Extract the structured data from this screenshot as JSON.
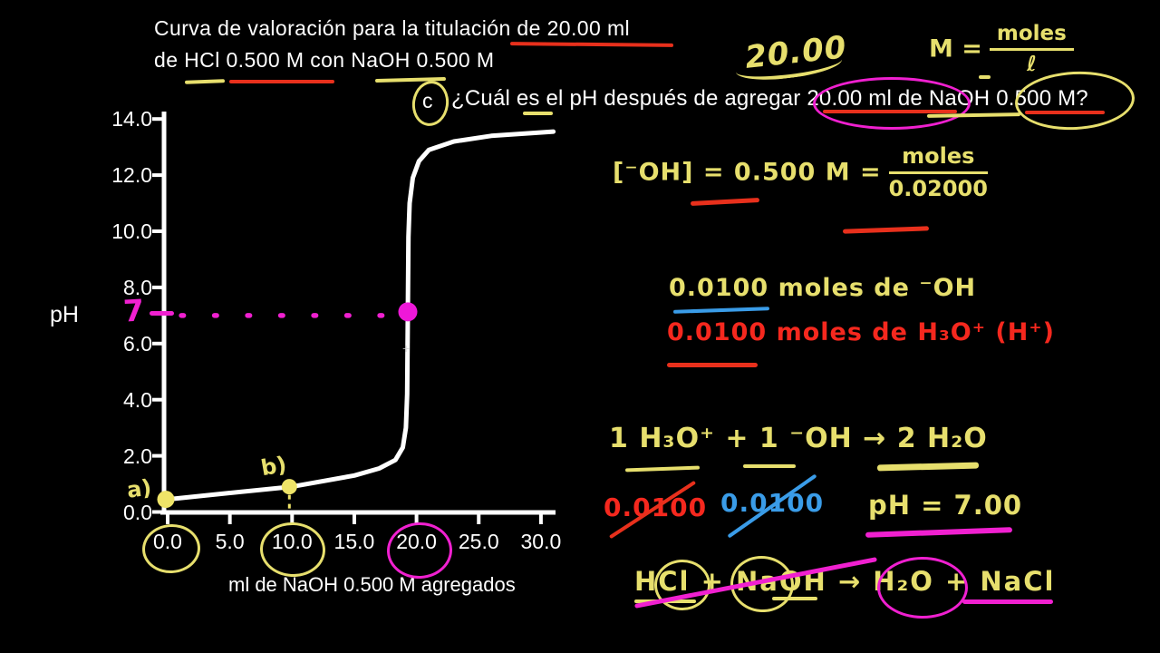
{
  "title": {
    "line1": "Curva de valoración para la titulación de 20.00 ml",
    "line2": "de HCl 0.500 M con NaOH 0.500 M"
  },
  "question": {
    "circle_label": "c",
    "text": "¿Cuál es el pH después de agregar 20.00 ml de NaOH 0.500 M?"
  },
  "plot": {
    "ylabel": "pH",
    "xlabel": "ml de NaOH 0.500 M agregados",
    "point_a_label": "a)",
    "point_b_label": "b)",
    "ph7_label": "7",
    "cursor_glyph": "+"
  },
  "chart_data": {
    "type": "line",
    "title": "Curva de valoración para la titulación de 20.00 ml de HCl 0.500 M con NaOH 0.500 M",
    "xlabel": "ml de NaOH 0.500 M agregados",
    "ylabel": "pH",
    "xlim": [
      0,
      31
    ],
    "ylim": [
      0,
      14
    ],
    "grid": false,
    "legend": false,
    "x_ticks": [
      0.0,
      5.0,
      10.0,
      15.0,
      20.0,
      25.0,
      30.0
    ],
    "y_ticks": [
      0.0,
      2.0,
      4.0,
      6.0,
      8.0,
      10.0,
      12.0,
      14.0
    ],
    "x_tick_labels": [
      "0.0",
      "5.0",
      "10.0",
      "15.0",
      "20.0",
      "25.0",
      "30.0"
    ],
    "y_tick_labels": [
      "0.0",
      "2.0",
      "4.0",
      "6.0",
      "8.0",
      "10.0",
      "12.0",
      "14.0"
    ],
    "curve": [
      [
        0,
        0.45
      ],
      [
        5,
        0.68
      ],
      [
        10,
        0.9
      ],
      [
        15,
        1.3
      ],
      [
        17,
        1.55
      ],
      [
        18.3,
        1.85
      ],
      [
        18.9,
        2.3
      ],
      [
        19.15,
        3.0
      ],
      [
        19.25,
        4.2
      ],
      [
        19.3,
        7.0
      ],
      [
        19.35,
        9.8
      ],
      [
        19.45,
        11.0
      ],
      [
        19.7,
        11.9
      ],
      [
        20.2,
        12.5
      ],
      [
        21,
        12.9
      ],
      [
        23,
        13.2
      ],
      [
        26,
        13.4
      ],
      [
        31,
        13.55
      ]
    ],
    "marked_points": [
      {
        "label": "a)",
        "ml": 0,
        "ph": 0.45,
        "color": "#efe468"
      },
      {
        "label": "b)",
        "ml": 10,
        "ph": 0.9,
        "color": "#efe468"
      },
      {
        "label": "",
        "ml": 19.3,
        "ph": 7.0,
        "color": "#ee18d8"
      }
    ],
    "reference_line": {
      "ph": 7.0,
      "from_ml": 1.1,
      "to_ml": 18.0,
      "style": "dotted",
      "color": "#f020d0"
    }
  },
  "annotations": {
    "volume_scribble": "20.00",
    "molarity_def": {
      "lhs": "M =",
      "numerator": "moles",
      "denominator": "ℓ"
    },
    "oh_concentration": {
      "lhs": "[⁻OH] = 0.500 M =",
      "numerator": "moles",
      "denominator": "0.02000"
    },
    "moles_oh": "0.0100  moles de ⁻OH",
    "moles_h3o": "0.0100  moles de H₃O⁺  (H⁺)",
    "neutralization": "1 H₃O⁺ + 1 ⁻OH → 2 H₂O",
    "h3o_moles_cancelled": "0.0100",
    "oh_moles_cancelled": "0.0100",
    "ph_result": "pH = 7.00",
    "overall_reaction": "HCl + NaOH → H₂O + NaCl"
  },
  "colors": {
    "background": "#000000",
    "curve": "#ffffff",
    "axis": "#ffffff",
    "text_white": "#ffffff",
    "hand_yellow": "#e7df6d",
    "hand_magenta": "#f020d0",
    "hand_red": "#f5281e",
    "hand_blue": "#3a9ce8",
    "underline_red": "#e8301c"
  }
}
